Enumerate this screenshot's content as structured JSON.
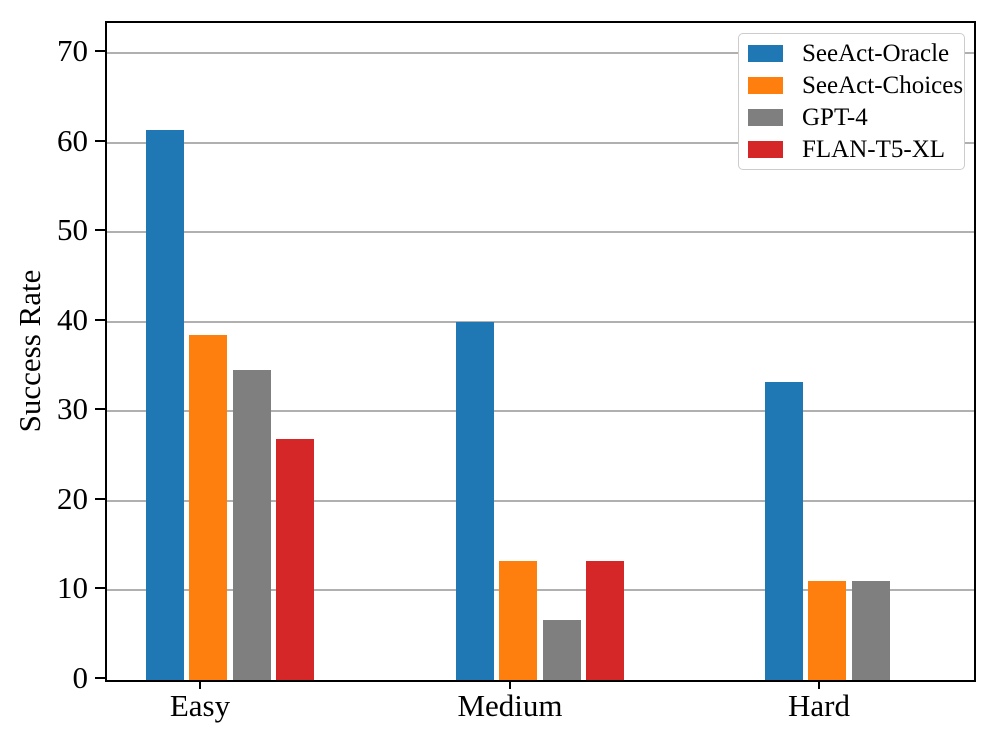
{
  "chart_data": {
    "type": "bar",
    "categories": [
      "Easy",
      "Medium",
      "Hard"
    ],
    "series": [
      {
        "name": "SeeAct-Oracle",
        "color": "#1f77b4",
        "values": [
          61.5,
          40.0,
          33.3
        ]
      },
      {
        "name": "SeeAct-Choices",
        "color": "#ff7f0e",
        "values": [
          38.5,
          13.3,
          11.1
        ]
      },
      {
        "name": "GPT-4",
        "color": "#7f7f7f",
        "values": [
          34.6,
          6.7,
          11.1
        ]
      },
      {
        "name": "FLAN-T5-XL",
        "color": "#d62728",
        "values": [
          26.9,
          13.3,
          0
        ]
      }
    ],
    "title": "",
    "xlabel": "",
    "ylabel": "Success Rate",
    "ylim": [
      0,
      73.4
    ],
    "yticks": [
      0,
      10,
      20,
      30,
      40,
      50,
      60,
      70
    ],
    "grid": true,
    "grid_color": "#b0b0b0",
    "axis_color": "#000000",
    "legend_position": "upper right",
    "legend_border_color": "#cccccc"
  }
}
